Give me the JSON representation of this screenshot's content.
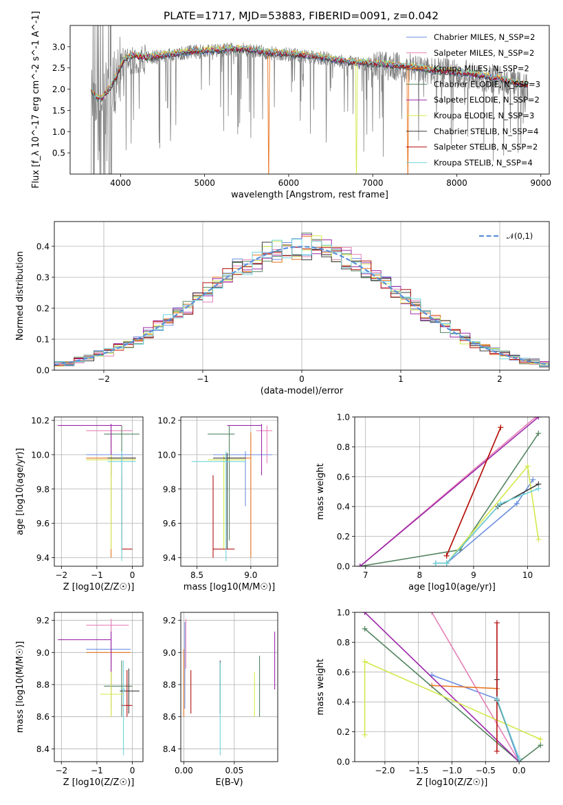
{
  "title": "PLATE=1717, MJD=53883, FIBERID=0091, z=0.042",
  "colors": {
    "Chabrier MILES": "#6b8fe0",
    "Salpeter MILES": "#e680b8",
    "Kroupa MILES": "#e8731f",
    "Chabrier ELODIE": "#52845f",
    "Salpeter ELODIE": "#9c27a8",
    "Kroupa ELODIE": "#d3e84a",
    "Chabrier STELIB": "#3a3a3a",
    "Salpeter STELIB": "#b30f0f",
    "Kroupa STELIB": "#6fd3dc",
    "data": "#808080",
    "normal": "#5b8fd8"
  },
  "chart_data": [
    {
      "id": "spectrum",
      "type": "line",
      "title": "PLATE=1717, MJD=53883, FIBERID=0091, z=0.042",
      "xlabel": "wavelength [Angstrom, rest frame]",
      "ylabel": "Flux [f_λ 10^-17 erg cm^-2 s^-1 A^-1]",
      "xlim": [
        3400,
        9100
      ],
      "ylim": [
        0,
        3.5
      ],
      "xticks": [
        4000,
        5000,
        6000,
        7000,
        8000,
        9000
      ],
      "yticks": [
        0.5,
        1.0,
        1.5,
        2.0,
        2.5,
        3.0
      ],
      "grid": false,
      "legend_position": "top-right",
      "legend": [
        "Chabrier MILES, N_SSP=2",
        "Salpeter MILES, N_SSP=2",
        "Kroupa MILES, N_SSP=2",
        "Chabrier ELODIE, N_SSP=3",
        "Salpeter ELODIE, N_SSP=2",
        "Kroupa ELODIE, N_SSP=3",
        "Chabrier STELIB, N_SSP=4",
        "Salpeter STELIB, N_SSP=2",
        "Kroupa STELIB, N_SSP=4"
      ],
      "continuum": [
        [
          3650,
          2.0
        ],
        [
          3700,
          1.8
        ],
        [
          3780,
          1.8
        ],
        [
          3880,
          2.05
        ],
        [
          3950,
          2.3
        ],
        [
          4000,
          2.55
        ],
        [
          4060,
          2.75
        ],
        [
          4150,
          2.8
        ],
        [
          4300,
          2.75
        ],
        [
          4500,
          2.8
        ],
        [
          4700,
          2.85
        ],
        [
          4900,
          2.9
        ],
        [
          5100,
          2.92
        ],
        [
          5300,
          2.95
        ],
        [
          5500,
          2.95
        ],
        [
          5700,
          2.88
        ],
        [
          5900,
          2.85
        ],
        [
          6100,
          2.82
        ],
        [
          6300,
          2.78
        ],
        [
          6500,
          2.72
        ],
        [
          6700,
          2.65
        ],
        [
          6900,
          2.62
        ],
        [
          7100,
          2.6
        ],
        [
          7300,
          2.55
        ],
        [
          7500,
          2.52
        ],
        [
          7700,
          2.45
        ],
        [
          7900,
          2.42
        ],
        [
          8100,
          2.38
        ],
        [
          8300,
          2.32
        ],
        [
          8500,
          2.25
        ],
        [
          8700,
          2.15
        ],
        [
          8850,
          2.1
        ]
      ]
    },
    {
      "id": "residuals",
      "type": "histogram",
      "xlabel": "(data-model)/error",
      "ylabel": "Normed distribution",
      "xlim": [
        -2.5,
        2.5
      ],
      "ylim": [
        0,
        0.48
      ],
      "xticks": [
        -2,
        -1,
        0,
        1,
        2
      ],
      "yticks": [
        0.0,
        0.1,
        0.2,
        0.3,
        0.4
      ],
      "grid": true,
      "legend_position": "top-right",
      "legend": [
        "𝒩(0,1)"
      ],
      "bin_width": 0.1,
      "reference_curve": "normal(0,1)"
    },
    {
      "id": "age_vs_Z",
      "type": "errorbar",
      "xlabel": "Z [log10(Z/Z☉)]",
      "ylabel": "age [log10(age/yr)]",
      "xlim": [
        -2.2,
        0.3
      ],
      "ylim": [
        9.35,
        10.22
      ],
      "xticks": [
        -2,
        -1,
        0
      ],
      "yticks": [
        9.4,
        9.6,
        9.8,
        10.0,
        10.2
      ],
      "grid": true,
      "points": [
        {
          "model": "Chabrier MILES",
          "x": -0.6,
          "xlo": -1.3,
          "xhi": 0.0,
          "y": 10.0,
          "ylo": 9.7,
          "yhi": 10.02
        },
        {
          "model": "Salpeter MILES",
          "x": -0.6,
          "xlo": -1.3,
          "xhi": 0.0,
          "y": 10.14,
          "ylo": 9.95,
          "yhi": 10.17
        },
        {
          "model": "Kroupa MILES",
          "x": -0.6,
          "xlo": -1.3,
          "xhi": 0.1,
          "y": 9.98,
          "ylo": 9.4,
          "yhi": 10.13
        },
        {
          "model": "Chabrier ELODIE",
          "x": -0.3,
          "xlo": -0.8,
          "xhi": 0.2,
          "y": 10.12,
          "ylo": 9.5,
          "yhi": 10.17
        },
        {
          "model": "Salpeter ELODIE",
          "x": -0.6,
          "xlo": -2.1,
          "xhi": -0.3,
          "y": 10.17,
          "ylo": 9.88,
          "yhi": 10.18
        },
        {
          "model": "Kroupa ELODIE",
          "x": -0.6,
          "xlo": -1.3,
          "xhi": 0.1,
          "y": 9.97,
          "ylo": 9.45,
          "yhi": 10.0
        },
        {
          "model": "Chabrier STELIB",
          "x": -0.3,
          "xlo": -0.7,
          "xhi": 0.1,
          "y": 9.98,
          "ylo": 9.45,
          "yhi": 10.01
        },
        {
          "model": "Salpeter STELIB",
          "x": -0.3,
          "xlo": -0.3,
          "xhi": 0.0,
          "y": 9.45,
          "ylo": 9.4,
          "yhi": 9.88
        },
        {
          "model": "Kroupa STELIB",
          "x": -0.3,
          "xlo": -0.7,
          "xhi": 0.1,
          "y": 9.96,
          "ylo": 9.38,
          "yhi": 10.02
        }
      ]
    },
    {
      "id": "age_vs_mass",
      "type": "errorbar",
      "xlabel": "mass [log10(M/M☉)]",
      "ylabel": "",
      "xlim": [
        8.35,
        9.25
      ],
      "ylim": [
        9.35,
        10.22
      ],
      "xticks": [
        8.5,
        9.0
      ],
      "yticks": [
        9.4,
        9.6,
        9.8,
        10.0,
        10.2
      ],
      "grid": true,
      "points": [
        {
          "model": "Chabrier MILES",
          "x": 8.95,
          "xlo": 8.65,
          "xhi": 9.2,
          "y": 10.0,
          "ylo": 9.7,
          "yhi": 10.02
        },
        {
          "model": "Salpeter MILES",
          "x": 9.15,
          "xlo": 9.05,
          "xhi": 9.2,
          "y": 10.14,
          "ylo": 9.95,
          "yhi": 10.17
        },
        {
          "model": "Kroupa MILES",
          "x": 9.0,
          "xlo": 8.75,
          "xhi": 9.0,
          "y": 9.98,
          "ylo": 9.4,
          "yhi": 10.13
        },
        {
          "model": "Chabrier ELODIE",
          "x": 8.8,
          "xlo": 8.6,
          "xhi": 8.85,
          "y": 10.12,
          "ylo": 9.5,
          "yhi": 10.17
        },
        {
          "model": "Salpeter ELODIE",
          "x": 9.1,
          "xlo": 8.78,
          "xhi": 9.1,
          "y": 10.17,
          "ylo": 9.88,
          "yhi": 10.18
        },
        {
          "model": "Kroupa ELODIE",
          "x": 8.75,
          "xlo": 8.6,
          "xhi": 8.95,
          "y": 9.97,
          "ylo": 9.45,
          "yhi": 10.0
        },
        {
          "model": "Chabrier STELIB",
          "x": 8.78,
          "xlo": 8.65,
          "xhi": 8.95,
          "y": 9.98,
          "ylo": 9.45,
          "yhi": 10.01
        },
        {
          "model": "Salpeter STELIB",
          "x": 8.65,
          "xlo": 8.65,
          "xhi": 8.85,
          "y": 9.45,
          "ylo": 9.4,
          "yhi": 9.88
        },
        {
          "model": "Kroupa STELIB",
          "x": 8.77,
          "xlo": 8.45,
          "xhi": 8.95,
          "y": 9.96,
          "ylo": 9.38,
          "yhi": 10.02
        }
      ]
    },
    {
      "id": "mass_weight_vs_age",
      "type": "line",
      "xlabel": "age [log10(age/yr)]",
      "ylabel": "mass weight",
      "xlim": [
        6.8,
        10.4
      ],
      "ylim": [
        0,
        1
      ],
      "xticks": [
        7,
        8,
        9,
        10
      ],
      "yticks": [
        0.0,
        0.2,
        0.4,
        0.6,
        0.8,
        1.0
      ],
      "grid": true,
      "series": [
        {
          "model": "Chabrier MILES",
          "x": [
            8.3,
            8.5,
            9.8,
            10.1
          ],
          "y": [
            0.02,
            0.02,
            0.42,
            0.58
          ]
        },
        {
          "model": "Salpeter MILES",
          "x": [
            6.9,
            10.15
          ],
          "y": [
            0.0,
            1.0
          ]
        },
        {
          "model": "Kroupa MILES",
          "x": [
            8.5,
            9.5
          ],
          "y": [
            0.07,
            0.93
          ]
        },
        {
          "model": "Chabrier ELODIE",
          "x": [
            6.9,
            8.75,
            10.2
          ],
          "y": [
            0.0,
            0.11,
            0.89
          ]
        },
        {
          "model": "Salpeter ELODIE",
          "x": [
            6.9,
            10.2
          ],
          "y": [
            0.0,
            1.0
          ]
        },
        {
          "model": "Kroupa ELODIE",
          "x": [
            8.5,
            10.0,
            10.2
          ],
          "y": [
            0.02,
            0.67,
            0.18
          ]
        },
        {
          "model": "Chabrier STELIB",
          "x": [
            8.3,
            8.5,
            9.45,
            10.2
          ],
          "y": [
            0.02,
            0.02,
            0.4,
            0.55
          ]
        },
        {
          "model": "Salpeter STELIB",
          "x": [
            8.5,
            9.5
          ],
          "y": [
            0.07,
            0.93
          ]
        },
        {
          "model": "Kroupa STELIB",
          "x": [
            8.3,
            8.5,
            9.5,
            10.2
          ],
          "y": [
            0.02,
            0.02,
            0.42,
            0.52
          ]
        }
      ]
    },
    {
      "id": "mass_vs_Z",
      "type": "errorbar",
      "xlabel": "Z [log10(Z/Z☉)]",
      "ylabel": "mass [log10(M/M☉)]",
      "xlim": [
        -2.2,
        0.3
      ],
      "ylim": [
        8.32,
        9.25
      ],
      "xticks": [
        -2,
        -1,
        0
      ],
      "yticks": [
        8.4,
        8.6,
        8.8,
        9.0,
        9.2
      ],
      "grid": true,
      "points": [
        {
          "model": "Chabrier MILES",
          "x": -0.6,
          "xlo": -1.3,
          "xhi": -0.05,
          "y": 9.02,
          "ylo": 8.65,
          "yhi": 9.19
        },
        {
          "model": "Salpeter MILES",
          "x": -0.6,
          "xlo": -1.3,
          "xhi": -0.1,
          "y": 9.17,
          "ylo": 8.9,
          "yhi": 9.21
        },
        {
          "model": "Kroupa MILES",
          "x": -0.6,
          "xlo": -1.3,
          "xhi": -0.05,
          "y": 9.0,
          "ylo": 8.6,
          "yhi": 9.02
        },
        {
          "model": "Chabrier ELODIE",
          "x": -0.3,
          "xlo": -0.8,
          "xhi": 0.0,
          "y": 8.79,
          "ylo": 8.6,
          "yhi": 8.95
        },
        {
          "model": "Salpeter ELODIE",
          "x": -0.6,
          "xlo": -2.1,
          "xhi": -0.6,
          "y": 9.08,
          "ylo": 8.77,
          "yhi": 9.13
        },
        {
          "model": "Kroupa ELODIE",
          "x": -0.6,
          "xlo": -0.9,
          "xhi": -0.25,
          "y": 8.74,
          "ylo": 8.6,
          "yhi": 8.88
        },
        {
          "model": "Chabrier STELIB",
          "x": -0.1,
          "xlo": -0.35,
          "xhi": 0.2,
          "y": 8.76,
          "ylo": 8.62,
          "yhi": 8.9
        },
        {
          "model": "Salpeter STELIB",
          "x": -0.15,
          "xlo": -0.3,
          "xhi": 0.0,
          "y": 8.67,
          "ylo": 8.6,
          "yhi": 8.89
        },
        {
          "model": "Kroupa STELIB",
          "x": -0.25,
          "xlo": -0.3,
          "xhi": -0.2,
          "y": 8.77,
          "ylo": 8.36,
          "yhi": 8.95
        }
      ]
    },
    {
      "id": "mass_vs_ebv",
      "type": "errorbar",
      "xlabel": "E(B-V)",
      "ylabel": "",
      "xlim": [
        -0.003,
        0.093
      ],
      "ylim": [
        8.32,
        9.25
      ],
      "xticks": [
        0.0,
        0.05
      ],
      "yticks": [
        8.4,
        8.6,
        8.8,
        9.0,
        9.2
      ],
      "grid": true,
      "points": [
        {
          "model": "Chabrier MILES",
          "x": 0.001,
          "y": 9.02,
          "ylo": 8.65,
          "yhi": 9.19
        },
        {
          "model": "Salpeter MILES",
          "x": 0.002,
          "y": 9.17,
          "ylo": 8.9,
          "yhi": 9.21
        },
        {
          "model": "Kroupa MILES",
          "x": 0.0,
          "y": 9.0,
          "ylo": 8.6,
          "yhi": 9.02
        },
        {
          "model": "Chabrier ELODIE",
          "x": 0.075,
          "y": 8.79,
          "ylo": 8.6,
          "yhi": 8.98
        },
        {
          "model": "Salpeter ELODIE",
          "x": 0.09,
          "y": 9.08,
          "ylo": 8.77,
          "yhi": 9.13
        },
        {
          "model": "Kroupa ELODIE",
          "x": 0.07,
          "y": 8.74,
          "ylo": 8.6,
          "yhi": 8.88
        },
        {
          "model": "Chabrier STELIB",
          "x": 0.036,
          "y": 8.76,
          "ylo": 8.62,
          "yhi": 8.95
        },
        {
          "model": "Salpeter STELIB",
          "x": 0.007,
          "y": 8.67,
          "ylo": 8.62,
          "yhi": 8.89
        },
        {
          "model": "Kroupa STELIB",
          "x": 0.036,
          "y": 8.77,
          "ylo": 8.36,
          "yhi": 8.94
        }
      ]
    },
    {
      "id": "mass_weight_vs_Z",
      "type": "line",
      "xlabel": "Z [log10(Z/Z☉)]",
      "ylabel": "mass weight",
      "xlim": [
        -2.45,
        0.45
      ],
      "ylim": [
        0,
        1
      ],
      "xticks": [
        -2.0,
        -1.5,
        -1.0,
        -0.5,
        0.0
      ],
      "yticks": [
        0.0,
        0.2,
        0.4,
        0.6,
        0.8,
        1.0
      ],
      "grid": true,
      "series": [
        {
          "model": "Chabrier MILES",
          "x": [
            -1.3,
            -0.33,
            0.0
          ],
          "y": [
            0.58,
            0.42,
            0.0
          ]
        },
        {
          "model": "Salpeter MILES",
          "x": [
            -1.3,
            0.0
          ],
          "y": [
            1.0,
            0.0
          ]
        },
        {
          "model": "Kroupa MILES",
          "x": [
            -1.3,
            -0.33
          ],
          "y": [
            0.51,
            0.49
          ]
        },
        {
          "model": "Chabrier ELODIE",
          "x": [
            -2.3,
            0.0,
            0.32
          ],
          "y": [
            0.89,
            0.0,
            0.11
          ]
        },
        {
          "model": "Salpeter ELODIE",
          "x": [
            -2.3,
            0.0
          ],
          "y": [
            1.0,
            0.0
          ]
        },
        {
          "model": "Kroupa ELODIE",
          "x": [
            -2.3,
            -2.3,
            0.32
          ],
          "y": [
            0.18,
            0.67,
            0.15
          ]
        },
        {
          "model": "Chabrier STELIB",
          "x": [
            -0.33,
            -0.33,
            0.0
          ],
          "y": [
            0.55,
            0.41,
            0.02
          ]
        },
        {
          "model": "Salpeter STELIB",
          "x": [
            -0.33,
            -0.33
          ],
          "y": [
            0.07,
            0.93
          ]
        },
        {
          "model": "Kroupa STELIB",
          "x": [
            -0.33,
            0.0,
            0.0
          ],
          "y": [
            0.42,
            0.02,
            0.0
          ]
        }
      ]
    }
  ]
}
